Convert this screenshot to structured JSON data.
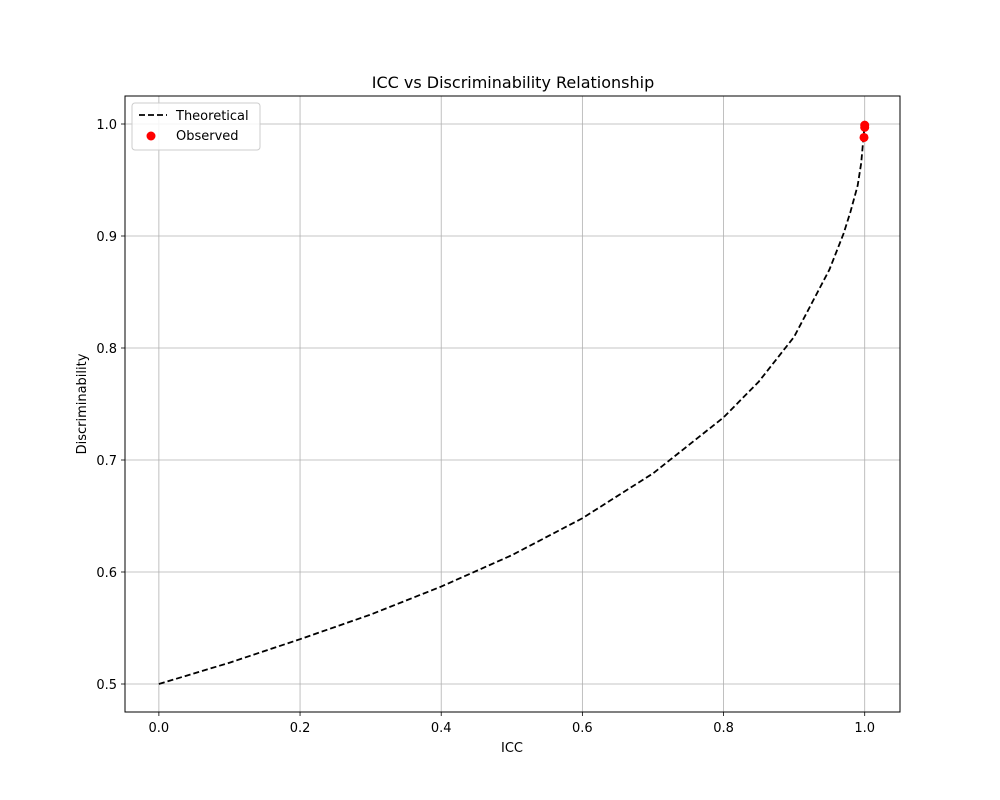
{
  "chart_data": {
    "type": "line",
    "title": "ICC vs Discriminability Relationship",
    "xlabel": "ICC",
    "ylabel": "Discriminability",
    "xlim": [
      -0.048,
      1.05
    ],
    "ylim": [
      0.475,
      1.025
    ],
    "xticks": [
      0.0,
      0.2,
      0.4,
      0.6,
      0.8,
      1.0
    ],
    "xtick_labels": [
      "0.0",
      "0.2",
      "0.4",
      "0.6",
      "0.8",
      "1.0"
    ],
    "yticks": [
      0.5,
      0.6,
      0.7,
      0.8,
      0.9,
      1.0
    ],
    "ytick_labels": [
      "0.5",
      "0.6",
      "0.7",
      "0.8",
      "0.9",
      "1.0"
    ],
    "grid": true,
    "legend": {
      "position": "upper-left",
      "entries": [
        "Theoretical",
        "Observed"
      ]
    },
    "series": [
      {
        "name": "Theoretical",
        "kind": "line",
        "style": "dashed",
        "color": "#000000",
        "x": [
          0.0,
          0.1,
          0.2,
          0.3,
          0.4,
          0.5,
          0.6,
          0.7,
          0.8,
          0.85,
          0.9,
          0.95,
          0.97,
          0.98,
          0.99,
          0.995,
          1.0
        ],
        "y": [
          0.5,
          0.519,
          0.54,
          0.562,
          0.587,
          0.615,
          0.648,
          0.688,
          0.738,
          0.77,
          0.81,
          0.87,
          0.902,
          0.922,
          0.945,
          0.965,
          1.0
        ]
      },
      {
        "name": "Observed",
        "kind": "scatter",
        "color": "#ff0000",
        "x": [
          1.0,
          1.0,
          0.999
        ],
        "y": [
          0.999,
          0.997,
          0.988
        ]
      }
    ]
  }
}
